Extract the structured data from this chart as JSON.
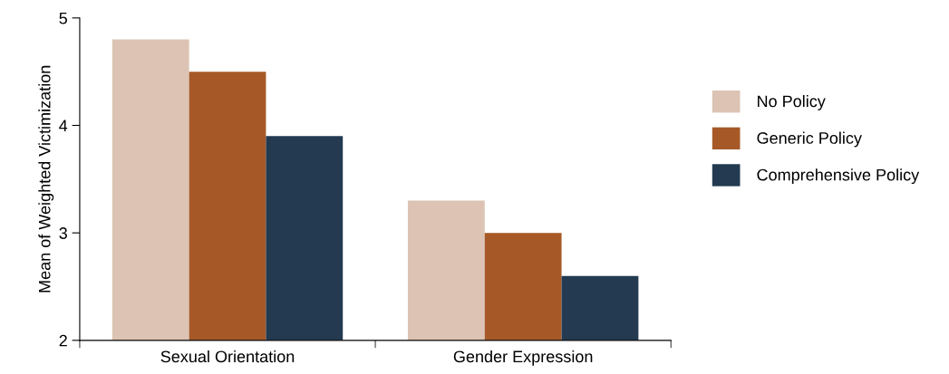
{
  "chart_data": {
    "type": "bar",
    "ylabel": "Mean of Weighted Victimization",
    "categories": [
      "Sexual Orientation",
      "Gender Expression"
    ],
    "series": [
      {
        "name": "No Policy",
        "color": "#dcc3b3",
        "values": [
          4.8,
          3.3
        ]
      },
      {
        "name": "Generic Policy",
        "color": "#a65927",
        "values": [
          4.5,
          3.0
        ]
      },
      {
        "name": "Comprehensive Policy",
        "color": "#233a50",
        "values": [
          3.9,
          2.6
        ]
      }
    ],
    "ylim": [
      2,
      5
    ],
    "yticks": [
      2,
      3,
      4,
      5
    ],
    "grid": false,
    "legend": "right"
  }
}
